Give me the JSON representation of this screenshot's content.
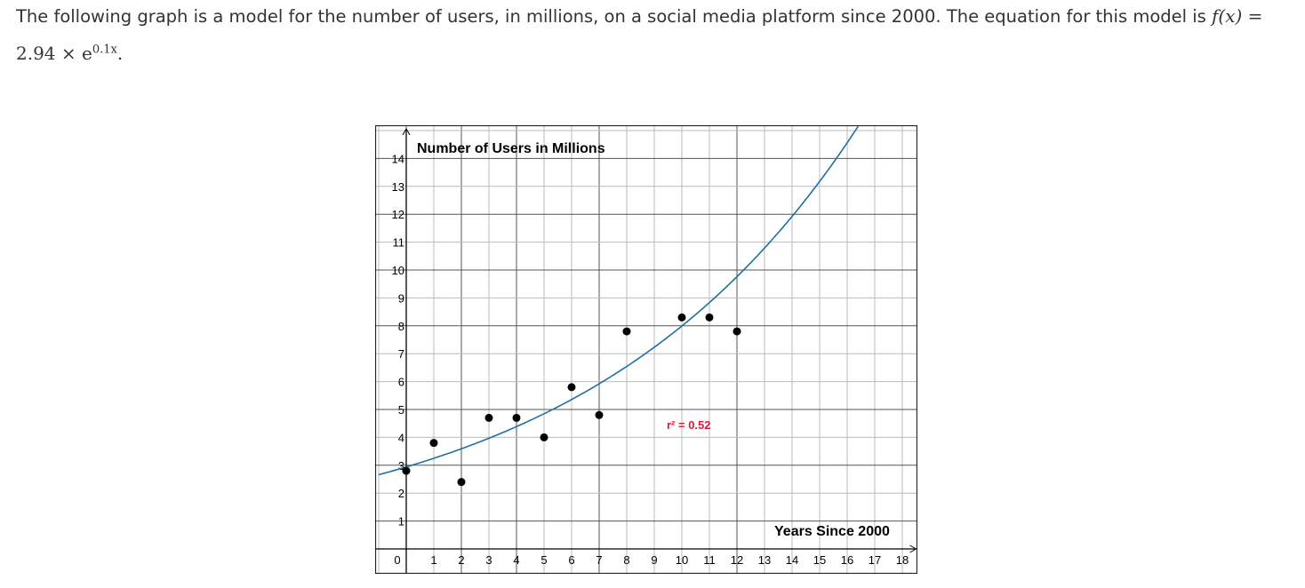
{
  "intro": {
    "text": "The following graph is a model for the number of users, in millions, on a social media platform since 2000. The equation for this model is",
    "equation_lhs": "f(x)",
    "equation_eq": " = 2.94 × e",
    "equation_exp": "0.1x",
    "equation_end": "."
  },
  "chart_data": {
    "type": "scatter",
    "ylabel": "Number of Users in Millions",
    "xlabel": "Years Since 2000",
    "x_ticks": [
      0,
      1,
      2,
      3,
      4,
      5,
      6,
      7,
      8,
      9,
      10,
      11,
      12,
      13,
      14,
      15,
      16,
      17,
      18
    ],
    "y_ticks": [
      1,
      2,
      3,
      4,
      5,
      6,
      7,
      8,
      9,
      10,
      11,
      12,
      13,
      14
    ],
    "xlim": [
      -1,
      18.5
    ],
    "ylim": [
      -0.8,
      15
    ],
    "grid": true,
    "points": [
      {
        "x": 0,
        "y": 2.8
      },
      {
        "x": 1,
        "y": 3.8
      },
      {
        "x": 2,
        "y": 2.4
      },
      {
        "x": 3,
        "y": 4.7
      },
      {
        "x": 4,
        "y": 4.7
      },
      {
        "x": 5,
        "y": 4.0
      },
      {
        "x": 6,
        "y": 5.8
      },
      {
        "x": 7,
        "y": 4.8
      },
      {
        "x": 8,
        "y": 7.8
      },
      {
        "x": 10,
        "y": 8.3
      },
      {
        "x": 11,
        "y": 8.3
      },
      {
        "x": 12,
        "y": 7.8
      }
    ],
    "model": {
      "a": 2.94,
      "b": 0.1,
      "color": "#1f6f9f"
    },
    "annotation": "r² = 0.52",
    "annotation_color": "#e0163f",
    "point_color": "#000000"
  }
}
